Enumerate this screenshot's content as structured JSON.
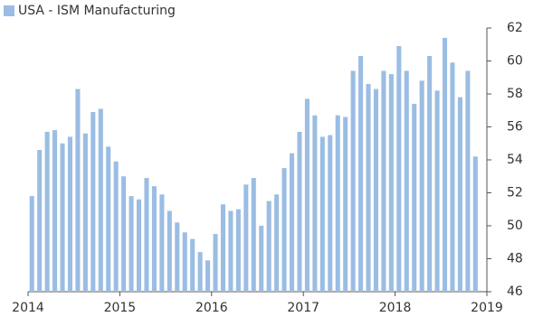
{
  "chart_data": {
    "type": "bar",
    "categories": [
      null,
      null,
      null,
      null,
      null,
      null,
      null,
      null,
      null,
      null,
      null,
      null,
      null,
      null,
      null,
      null,
      null,
      null,
      null,
      null,
      null,
      null,
      null,
      null,
      null,
      null,
      null,
      null,
      null,
      null,
      null,
      null,
      null,
      null,
      null,
      null,
      null,
      null,
      null,
      null,
      null,
      null,
      null,
      null,
      null,
      null,
      null,
      null,
      null,
      null,
      null,
      null,
      null,
      null,
      null,
      null,
      null,
      null,
      null,
      null
    ],
    "series": [
      {
        "name": "USA - ISM Manufacturing",
        "color": "#9bbde3",
        "values": [
          51.8,
          54.6,
          55.7,
          55.8,
          55.0,
          55.4,
          58.3,
          55.6,
          56.9,
          57.1,
          54.8,
          53.9,
          53.0,
          51.8,
          51.6,
          52.9,
          52.4,
          51.9,
          50.9,
          50.2,
          49.6,
          49.2,
          48.4,
          47.9,
          49.5,
          51.3,
          50.9,
          51.0,
          52.5,
          52.9,
          50.0,
          51.5,
          51.9,
          53.5,
          54.4,
          55.7,
          57.7,
          56.7,
          55.4,
          55.5,
          56.7,
          56.6,
          59.4,
          60.3,
          58.6,
          58.3,
          59.4,
          59.2,
          60.9,
          59.4,
          57.4,
          58.8,
          60.3,
          58.2,
          61.4,
          59.9,
          57.8,
          59.4,
          54.2,
          null
        ]
      }
    ],
    "xlim": [
      2014,
      2019
    ],
    "xticks": [
      2014,
      2015,
      2016,
      2017,
      2018,
      2019
    ],
    "ylim": [
      46,
      62
    ],
    "yticks": [
      46,
      48,
      50,
      52,
      54,
      56,
      58,
      60,
      62
    ],
    "y_axis_side": "right",
    "legend": "top-left",
    "grid": false
  }
}
